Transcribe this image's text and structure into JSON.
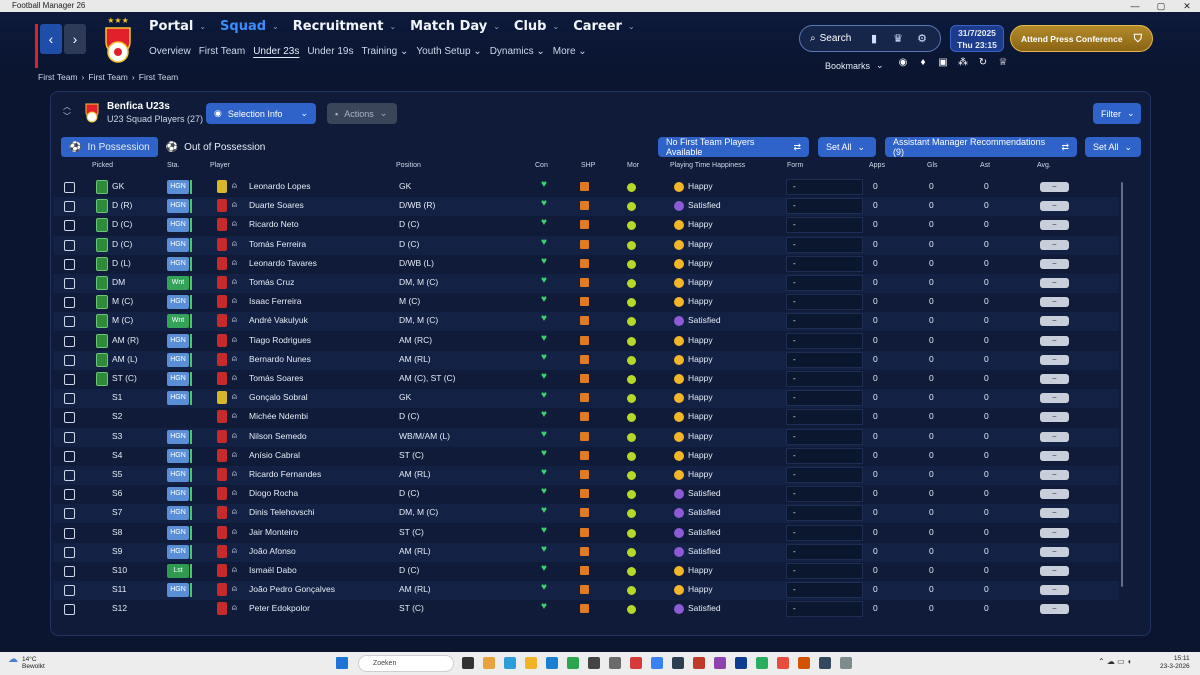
{
  "window": {
    "title": "Football Manager 26",
    "controls": [
      "—",
      "▢",
      "✕"
    ]
  },
  "header": {
    "main_nav": [
      {
        "label": "Portal",
        "active": false
      },
      {
        "label": "Squad",
        "active": true
      },
      {
        "label": "Recruitment",
        "active": false
      },
      {
        "label": "Match Day",
        "active": false
      },
      {
        "label": "Club",
        "active": false
      },
      {
        "label": "Career",
        "active": false
      }
    ],
    "sub_nav": [
      {
        "label": "Overview",
        "active": false
      },
      {
        "label": "First Team",
        "active": false
      },
      {
        "label": "Under 23s",
        "active": true
      },
      {
        "label": "Under 19s",
        "active": false
      },
      {
        "label": "Training ⌄",
        "active": false
      },
      {
        "label": "Youth Setup ⌄",
        "active": false
      },
      {
        "label": "Dynamics ⌄",
        "active": false
      },
      {
        "label": "More ⌄",
        "active": false
      }
    ],
    "search_label": "Search",
    "date": "31/7/2025",
    "day_time": "Thu   23:15",
    "press_label": "Attend Press Conference",
    "bookmarks_label": "Bookmarks",
    "accent": "#3d8cff"
  },
  "breadcrumb": [
    "First Team",
    "First Team",
    "First Team"
  ],
  "panel": {
    "team_name": "Benfica U23s",
    "subtitle": "U23 Squad Players (27)",
    "selection_info": "Selection Info",
    "actions": "Actions",
    "filter": "Filter",
    "tab_in": "In Possession",
    "tab_out": "Out of Possession",
    "no_first_team": "No First Team Players Available",
    "set_all": "Set All",
    "assistant": "Assistant Manager Recommendations (9)"
  },
  "columns": {
    "picked": "Picked",
    "sta": "Sta.",
    "player": "Player",
    "position": "Position",
    "con": "Con",
    "shp": "SHP",
    "mor": "Mor",
    "pth": "Playing Time Happiness",
    "form": "Form",
    "apps": "Apps",
    "gls": "Gls",
    "ast": "Ast",
    "avg": "Avg."
  },
  "players": [
    {
      "picked": "GK",
      "sta": "HGN",
      "name": "Leonardo Lopes",
      "position": "GK",
      "happiness": "Happy",
      "gk": true,
      "pitch": true
    },
    {
      "picked": "D (R)",
      "sta": "HGN",
      "name": "Duarte Soares",
      "position": "D/WB (R)",
      "happiness": "Satisfied",
      "pitch": true
    },
    {
      "picked": "D (C)",
      "sta": "HGN",
      "name": "Ricardo Neto",
      "position": "D (C)",
      "happiness": "Happy",
      "pitch": true
    },
    {
      "picked": "D (C)",
      "sta": "HGN",
      "name": "Tomás Ferreira",
      "position": "D (C)",
      "happiness": "Happy",
      "pitch": true
    },
    {
      "picked": "D (L)",
      "sta": "HGN",
      "name": "Leonardo Tavares",
      "position": "D/WB (L)",
      "happiness": "Happy",
      "pitch": true
    },
    {
      "picked": "DM",
      "sta": "Wnt",
      "name": "Tomás Cruz",
      "position": "DM, M (C)",
      "happiness": "Happy",
      "pitch": true
    },
    {
      "picked": "M (C)",
      "sta": "HGN",
      "name": "Isaac Ferreira",
      "position": "M (C)",
      "happiness": "Happy",
      "pitch": true
    },
    {
      "picked": "M (C)",
      "sta": "Wnt",
      "name": "André Vakulyuk",
      "position": "DM, M (C)",
      "happiness": "Satisfied",
      "pitch": true
    },
    {
      "picked": "AM (R)",
      "sta": "HGN",
      "name": "Tiago Rodrigues",
      "position": "AM (RC)",
      "happiness": "Happy",
      "pitch": true
    },
    {
      "picked": "AM (L)",
      "sta": "HGN",
      "name": "Bernardo Nunes",
      "position": "AM (RL)",
      "happiness": "Happy",
      "pitch": true
    },
    {
      "picked": "ST (C)",
      "sta": "HGN",
      "name": "Tomás Soares",
      "position": "AM (C), ST (C)",
      "happiness": "Happy",
      "pitch": true
    },
    {
      "picked": "S1",
      "sta": "HGN",
      "name": "Gonçalo Sobral",
      "position": "GK",
      "happiness": "Happy",
      "gk": true
    },
    {
      "picked": "S2",
      "sta": "",
      "name": "Michée Ndembi",
      "position": "D (C)",
      "happiness": "Happy"
    },
    {
      "picked": "S3",
      "sta": "HGN",
      "name": "Nilson Semedo",
      "position": "WB/M/AM (L)",
      "happiness": "Happy"
    },
    {
      "picked": "S4",
      "sta": "HGN",
      "name": "Anísio Cabral",
      "position": "ST (C)",
      "happiness": "Happy"
    },
    {
      "picked": "S5",
      "sta": "HGN",
      "name": "Ricardo Fernandes",
      "position": "AM (RL)",
      "happiness": "Happy"
    },
    {
      "picked": "S6",
      "sta": "HGN",
      "name": "Diogo Rocha",
      "position": "D (C)",
      "happiness": "Satisfied"
    },
    {
      "picked": "S7",
      "sta": "HGN",
      "name": "Dinis Telehovschi",
      "position": "DM, M (C)",
      "happiness": "Satisfied"
    },
    {
      "picked": "S8",
      "sta": "HGN",
      "name": "Jair Monteiro",
      "position": "ST (C)",
      "happiness": "Satisfied"
    },
    {
      "picked": "S9",
      "sta": "HGN",
      "name": "João Afonso",
      "position": "AM (RL)",
      "happiness": "Satisfied"
    },
    {
      "picked": "S10",
      "sta": "Lst",
      "name": "Ismaël Dabo",
      "position": "D (C)",
      "happiness": "Happy"
    },
    {
      "picked": "S11",
      "sta": "HGN",
      "name": "João Pedro Gonçalves",
      "position": "AM (RL)",
      "happiness": "Happy"
    },
    {
      "picked": "S12",
      "sta": "",
      "name": "Peter Edokpolor",
      "position": "ST (C)",
      "happiness": "Satisfied"
    }
  ],
  "row_defaults": {
    "form": "-",
    "apps": "0",
    "gls": "0",
    "ast": "0",
    "avg": "–"
  },
  "taskbar": {
    "weather_temp": "14°C",
    "weather_desc": "Bewolkt",
    "search_placeholder": "Zoeken",
    "time": "15:11",
    "date": "23-3-2026"
  }
}
